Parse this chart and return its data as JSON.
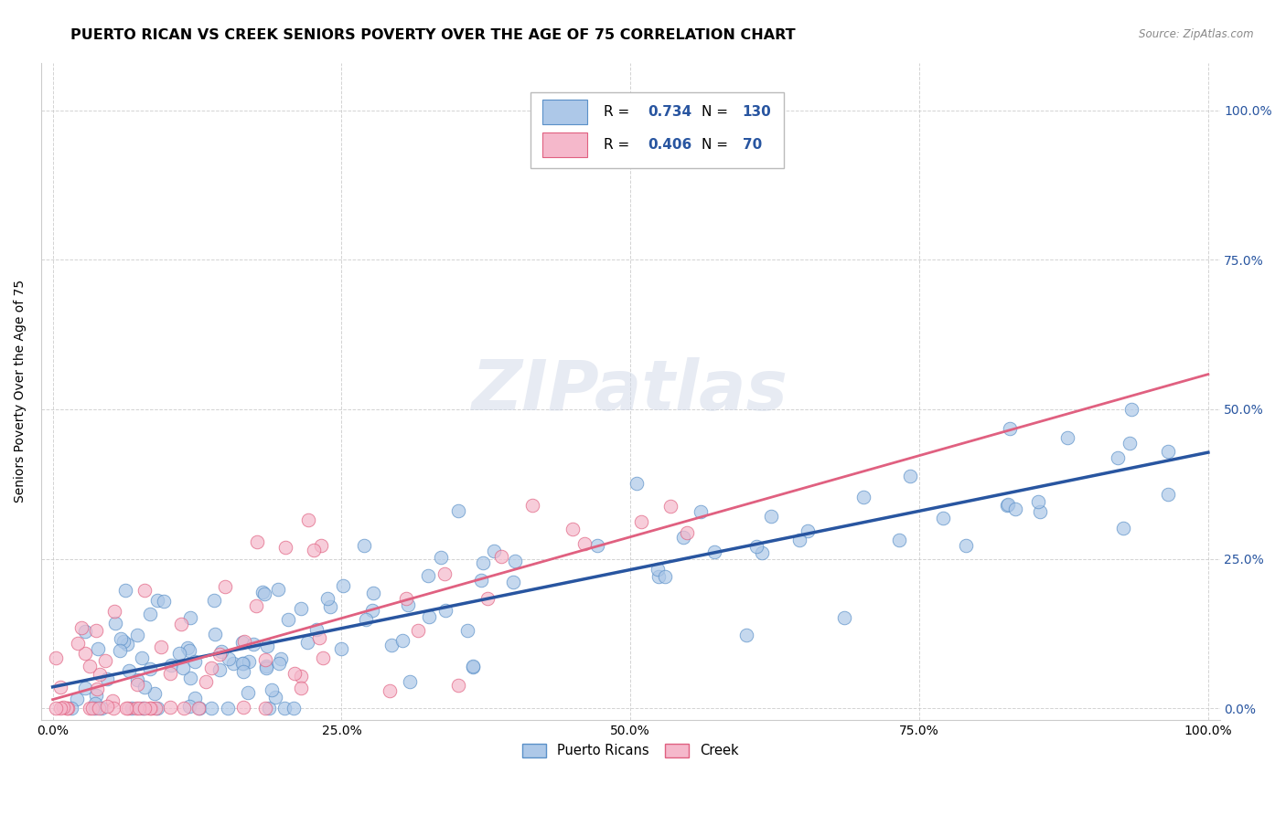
{
  "title": "PUERTO RICAN VS CREEK SENIORS POVERTY OVER THE AGE OF 75 CORRELATION CHART",
  "source": "Source: ZipAtlas.com",
  "ylabel_label": "Seniors Poverty Over the Age of 75",
  "legend_entries": [
    {
      "color": "#adc8e8",
      "label": "Puerto Ricans",
      "R": "0.734",
      "N": "130"
    },
    {
      "color": "#f5b8cb",
      "label": "Creek",
      "R": "0.406",
      "N": "70"
    }
  ],
  "blue_line_color": "#2855a0",
  "pink_line_color": "#e06080",
  "watermark": "ZIPatlas",
  "background_color": "#ffffff",
  "grid_color": "#c8c8c8",
  "scatter_blue_color": "#adc8e8",
  "scatter_pink_color": "#f5b8cb",
  "scatter_blue_edge": "#5a90c8",
  "scatter_pink_edge": "#e06080",
  "right_axis_color": "#2855a0",
  "title_fontsize": 11.5,
  "axis_label_fontsize": 10,
  "tick_fontsize": 10,
  "seed": 42,
  "n_blue": 130,
  "n_pink": 70,
  "R_blue": 0.734,
  "R_pink": 0.406,
  "blue_line_slope": 0.44,
  "blue_line_intercept": 0.01,
  "pink_line_slope": 0.5,
  "pink_line_intercept": 0.01
}
